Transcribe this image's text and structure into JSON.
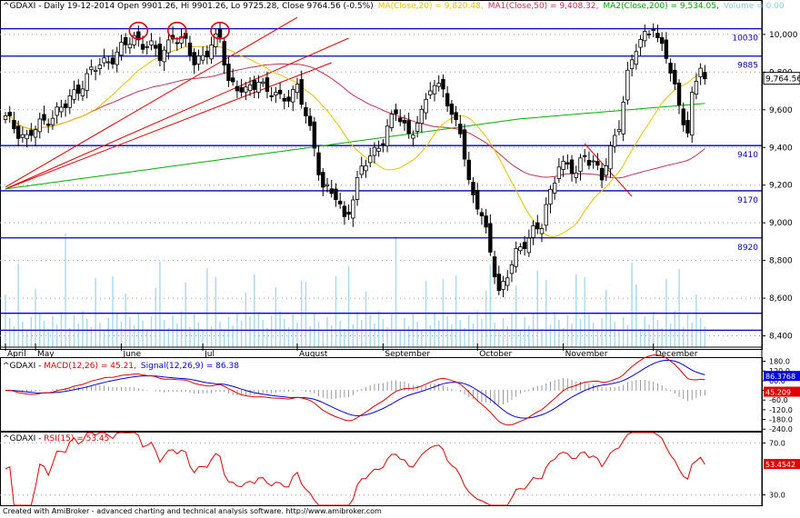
{
  "header": {
    "ticker": "^GDAXI - Daily 19-12-2014 Open 9901.26, Hi 9901.26, Lo 9725.28, Close 9764.56 (-0.5%)",
    "ma20": "MA(Close,20) = 9,820.48,",
    "ma50": "MA1(Close,50) = 9,408.32,",
    "ma200": "MA2(Close,200) = 9,534.05,",
    "volume": "Volume = 0.00"
  },
  "macd_header": {
    "prefix": "^GDAXI - ",
    "macd": "MACD(12,26) = 45.21,",
    "signal": "Signal(12,26,9) = 86.38"
  },
  "rsi_header": {
    "prefix": "^GDAXI - ",
    "rsi": "RSI(15) = 53.45"
  },
  "footer": "Created with AmiBroker - advanced charting and technical analysis software. http://www.amibroker.com",
  "colors": {
    "up": "#ffffff",
    "down": "#000000",
    "hline": "#0000c0",
    "trendline": "#e00000",
    "ma20": "#e8c000",
    "ma50": "#c03050",
    "ma200": "#00b000",
    "volume": "#a8d8ec",
    "macd": "#e00000",
    "signal": "#0000e0",
    "rsi": "#e00000"
  },
  "chart_data": [
    {
      "type": "candlestick",
      "title": "^GDAXI - Daily 19-12-2014",
      "x_labels": [
        "April",
        "May",
        "June",
        "Jul",
        "August",
        "September",
        "October",
        "November",
        "December"
      ],
      "y_ticks": [
        8400,
        8600,
        8800,
        9000,
        9200,
        9400,
        9600,
        9800,
        10000
      ],
      "ylim": [
        8340,
        10120
      ],
      "last_close_label": "9,764.56",
      "last_close": 9764.56,
      "horizontal_levels": [
        {
          "value": 10030,
          "label": "10030"
        },
        {
          "value": 9885,
          "label": "9885"
        },
        {
          "value": 9410,
          "label": "9410"
        },
        {
          "value": 9170,
          "label": "9170"
        },
        {
          "value": 8920,
          "label": "8920"
        },
        {
          "value": 8520,
          "label": ""
        },
        {
          "value": 8430,
          "label": ""
        }
      ],
      "close_anchors": [
        [
          0,
          9550
        ],
        [
          5,
          9450
        ],
        [
          10,
          9560
        ],
        [
          14,
          9620
        ],
        [
          17,
          9720
        ],
        [
          20,
          9800
        ],
        [
          24,
          9870
        ],
        [
          27,
          9920
        ],
        [
          30,
          9980
        ],
        [
          33,
          9950
        ],
        [
          36,
          9880
        ],
        [
          39,
          10000
        ],
        [
          42,
          9940
        ],
        [
          44,
          9860
        ],
        [
          47,
          9910
        ],
        [
          50,
          9980
        ],
        [
          52,
          9760
        ],
        [
          56,
          9680
        ],
        [
          59,
          9770
        ],
        [
          61,
          9700
        ],
        [
          64,
          9650
        ],
        [
          68,
          9720
        ],
        [
          70,
          9560
        ],
        [
          72,
          9400
        ],
        [
          74,
          9200
        ],
        [
          77,
          9130
        ],
        [
          79,
          9020
        ],
        [
          81,
          9150
        ],
        [
          83,
          9280
        ],
        [
          86,
          9380
        ],
        [
          88,
          9460
        ],
        [
          91,
          9580
        ],
        [
          94,
          9480
        ],
        [
          97,
          9560
        ],
        [
          99,
          9720
        ],
        [
          102,
          9740
        ],
        [
          104,
          9540
        ],
        [
          106,
          9490
        ],
        [
          108,
          9220
        ],
        [
          110,
          9100
        ],
        [
          113,
          8850
        ],
        [
          115,
          8640
        ],
        [
          117,
          8730
        ],
        [
          119,
          8820
        ],
        [
          121,
          8900
        ],
        [
          123,
          8970
        ],
        [
          125,
          8980
        ],
        [
          127,
          9150
        ],
        [
          129,
          9330
        ],
        [
          131,
          9300
        ],
        [
          133,
          9250
        ],
        [
          135,
          9370
        ],
        [
          137,
          9330
        ],
        [
          139,
          9230
        ],
        [
          141,
          9380
        ],
        [
          143,
          9540
        ],
        [
          145,
          9780
        ],
        [
          147,
          9920
        ],
        [
          149,
          10000
        ],
        [
          151,
          10060
        ],
        [
          152,
          9960
        ],
        [
          154,
          9880
        ],
        [
          156,
          9720
        ],
        [
          158,
          9560
        ],
        [
          159,
          9470
        ],
        [
          160,
          9650
        ],
        [
          162,
          9840
        ],
        [
          163,
          9764
        ]
      ],
      "volume_max": 1
    },
    {
      "type": "line",
      "title": "MACD(12,26)",
      "series": [
        {
          "name": "MACD(12,26)",
          "value": 45.21
        },
        {
          "name": "Signal(12,26,9)",
          "value": 86.38
        }
      ],
      "y_ticks": [
        "180.0",
        "120.0",
        "60.0",
        "0.0",
        "-60.0",
        "-120.0",
        "-180.0",
        "-240.0"
      ],
      "value_labels": [
        "86.3768",
        "45.209"
      ],
      "ylim": [
        -250,
        200
      ]
    },
    {
      "type": "line",
      "title": "RSI(15)",
      "series": [
        {
          "name": "RSI(15)",
          "value": 53.45
        }
      ],
      "y_ticks": [
        "70.0",
        "30.0"
      ],
      "value_label": "53.4542",
      "ylim": [
        22,
        78
      ]
    }
  ]
}
